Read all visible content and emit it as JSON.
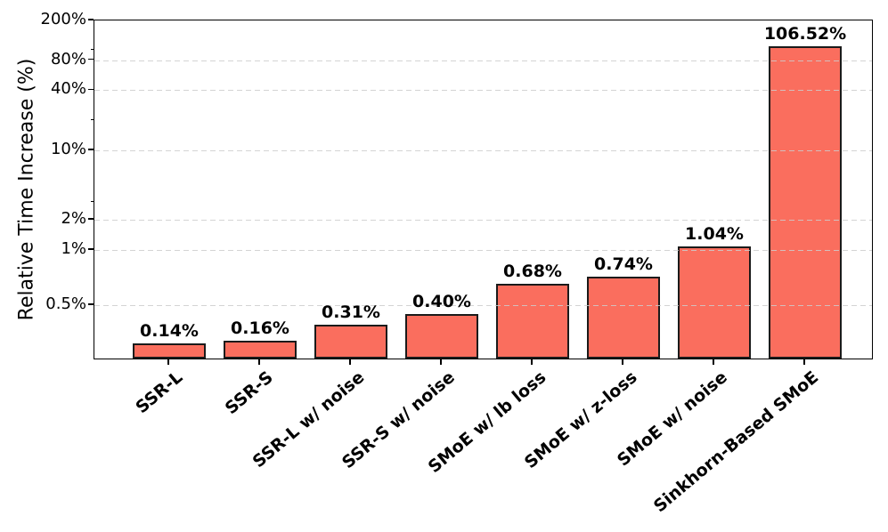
{
  "chart_data": {
    "type": "bar",
    "title": "",
    "xlabel": "",
    "ylabel": "Relative Time Increase (%)",
    "categories": [
      "SSR-L",
      "SSR-S",
      "SSR-L w/ noise",
      "SSR-S w/ noise",
      "SMoE w/ lb loss",
      "SMoE w/ z-loss",
      "SMoE w/ noise",
      "Sinkhorn-Based SMoE"
    ],
    "values": [
      0.14,
      0.16,
      0.31,
      0.4,
      0.68,
      0.74,
      1.04,
      106.52
    ],
    "bar_labels": [
      "0.14%",
      "0.16%",
      "0.31%",
      "0.40%",
      "0.68%",
      "0.74%",
      "1.04%",
      "106.52%"
    ],
    "yscale": "symlog (linear below 1%, log10 above 1%)",
    "ylim": [
      0,
      200
    ],
    "yticks": [
      {
        "value": 200,
        "label": "200%"
      },
      {
        "value": 80,
        "label": "80%"
      },
      {
        "value": 40,
        "label": "40%"
      },
      {
        "value": 10,
        "label": "10%"
      },
      {
        "value": 2,
        "label": "2%"
      },
      {
        "value": 1,
        "label": "1%"
      },
      {
        "value": 0.5,
        "label": "0.5%"
      }
    ],
    "minor_yticks": [
      100,
      20,
      3
    ],
    "grid": "horizontal dashed gridlines at major ticks, drawn over bars",
    "legend": "none",
    "x_tick_rotation_deg": 40,
    "colors": {
      "bar_fill": "#FA6E5E",
      "bar_edge": "#1a1a1a",
      "grid": "#cccccc",
      "text": "#000000",
      "background": "#ffffff"
    }
  }
}
